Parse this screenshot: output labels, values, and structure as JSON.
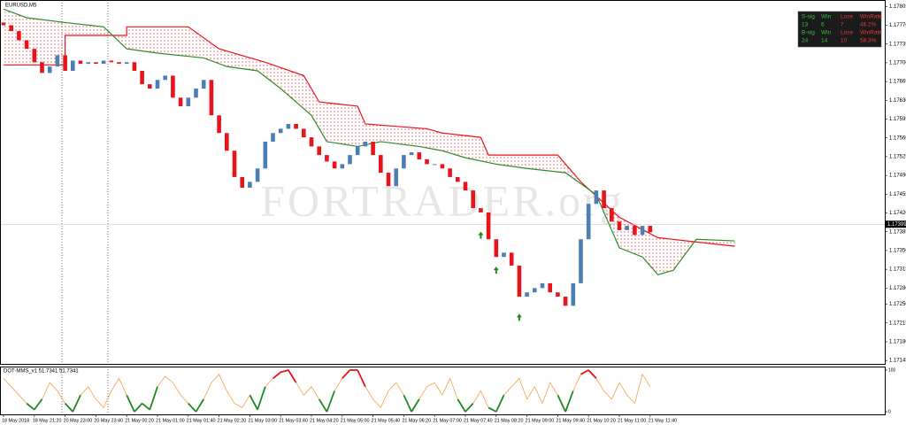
{
  "chart_data": [
    {
      "type": "candlestick",
      "title": "EURUSD,M5",
      "watermark": "FORTRADER.org",
      "categories": [
        "18 May 2018",
        null,
        null,
        null,
        "18 May 21:20",
        null,
        null,
        null,
        "20 May 23:00",
        null,
        null,
        null,
        "20 May 23:40",
        null,
        null,
        null,
        "21 May 00:20",
        null,
        null,
        null,
        "21 May 01:00",
        null,
        null,
        null,
        "21 May 01:40",
        null,
        null,
        null,
        "21 May 02:20",
        null,
        null,
        null,
        "21 May 03:00",
        null,
        null,
        null,
        "21 May 03:40",
        null,
        null,
        null,
        "21 May 04:20",
        null,
        null,
        null,
        "21 May 05:00",
        null,
        null,
        null,
        "21 May 05:40",
        null,
        null,
        null,
        "21 May 06:20",
        null,
        null,
        null,
        "21 May 07:00",
        null,
        null,
        null,
        "21 May 07:40",
        null,
        null,
        null,
        "21 May 08:20",
        null,
        null,
        null,
        "21 May 09:00",
        null,
        null,
        null,
        "21 May 09:40",
        null,
        null,
        null,
        "21 May 10:20",
        null,
        null,
        null,
        "21 May 11:00",
        null,
        null,
        null,
        "21 May 11:40"
      ],
      "open": [
        1.17775,
        1.1777,
        1.17759,
        1.17742,
        1.17726,
        1.17701,
        1.17681,
        1.17693,
        1.17714,
        1.17685,
        1.17704,
        1.17698,
        1.17701,
        1.17698,
        1.17704,
        1.17701,
        1.17698,
        1.17701,
        1.17685,
        1.1766,
        1.17652,
        1.17668,
        1.17676,
        1.17635,
        1.17619,
        1.17635,
        1.17652,
        1.17668,
        1.17602,
        1.17569,
        1.17536,
        1.17487,
        1.17467,
        1.17478,
        1.17503,
        1.17553,
        1.17569,
        1.17577,
        1.17586,
        1.17577,
        1.17561,
        1.17544,
        1.17528,
        1.17516,
        1.17503,
        1.17511,
        1.17528,
        1.17544,
        1.17553,
        1.17528,
        1.17495,
        1.1747,
        1.17503,
        1.17528,
        1.17533,
        1.1752,
        1.17511,
        1.17511,
        1.17503,
        1.17487,
        1.17478,
        1.17462,
        1.17429,
        1.17421,
        1.17371,
        1.17338,
        1.17346,
        1.17322,
        1.17264,
        1.17272,
        1.1728,
        1.17289,
        1.17272,
        1.17264,
        1.17247,
        1.17289,
        1.17371,
        1.17437,
        1.17462,
        1.17429,
        1.17404,
        1.17388,
        1.17396,
        1.17379,
        1.17396
      ],
      "close": [
        1.1777,
        1.17759,
        1.17742,
        1.17726,
        1.17701,
        1.17681,
        1.17693,
        1.17714,
        1.17685,
        1.17704,
        1.17698,
        1.17701,
        1.17698,
        1.17704,
        1.17701,
        1.17698,
        1.17701,
        1.17685,
        1.1766,
        1.17652,
        1.17668,
        1.17676,
        1.17635,
        1.17619,
        1.17635,
        1.17652,
        1.17668,
        1.17602,
        1.17569,
        1.17536,
        1.17487,
        1.17467,
        1.17478,
        1.17503,
        1.17553,
        1.17569,
        1.17577,
        1.17586,
        1.17577,
        1.17561,
        1.17544,
        1.17528,
        1.17516,
        1.17503,
        1.17511,
        1.17528,
        1.17544,
        1.17553,
        1.17528,
        1.17495,
        1.1747,
        1.17503,
        1.17528,
        1.17533,
        1.1752,
        1.17511,
        1.17511,
        1.17503,
        1.17487,
        1.17478,
        1.17462,
        1.17429,
        1.17421,
        1.17371,
        1.17338,
        1.17346,
        1.17322,
        1.17264,
        1.17272,
        1.1728,
        1.17289,
        1.17272,
        1.17264,
        1.17247,
        1.17289,
        1.17371,
        1.17437,
        1.17462,
        1.17429,
        1.17404,
        1.17388,
        1.17396,
        1.17379,
        1.17396,
        1.17384
      ],
      "up_color": "#4a7eb5",
      "down_color": "#e8141c",
      "overlays": [
        {
          "color": "#e8141c",
          "x": [
            0,
            8,
            8,
            16,
            16,
            24,
            28,
            34,
            39,
            41,
            46,
            47,
            55,
            57,
            62,
            63,
            72,
            75,
            80,
            85,
            95
          ],
          "values": [
            1.17696,
            1.17696,
            1.17751,
            1.17751,
            1.17767,
            1.17767,
            1.17726,
            1.17701,
            1.17676,
            1.17627,
            1.17619,
            1.17586,
            1.17577,
            1.17569,
            1.17561,
            1.17528,
            1.17528,
            1.17478,
            1.17412,
            1.17374,
            1.17358
          ]
        },
        {
          "color": "#2e8b2e",
          "x": [
            0,
            3,
            8,
            13,
            16,
            20,
            26,
            29,
            33,
            36,
            40,
            42,
            46,
            49,
            54,
            57,
            60,
            64,
            68,
            73,
            77,
            80,
            83,
            85,
            87,
            90,
            95
          ],
          "values": [
            1.178,
            1.17784,
            1.17775,
            1.17767,
            1.17726,
            1.17718,
            1.17709,
            1.17693,
            1.17685,
            1.17652,
            1.17602,
            1.17553,
            1.17544,
            1.17553,
            1.17544,
            1.17536,
            1.17523,
            1.17511,
            1.17503,
            1.17495,
            1.17454,
            1.17355,
            1.17338,
            1.17305,
            1.17313,
            1.17371,
            1.17368
          ]
        }
      ],
      "buy_signals": {
        "color": "#1e8a1e",
        "x": [
          62,
          64,
          67
        ],
        "values": [
          1.17395,
          1.1733,
          1.17242
        ]
      },
      "last_price": {
        "value": 1.17399,
        "label": "1.17399"
      },
      "ylim": [
        1.17137,
        1.17817
      ],
      "yticks": [
        1.17805,
        {
          "value": 1.1777,
          "label": "1.17770"
        },
        1.17735,
        {
          "value": 1.177,
          "label": "1.17700"
        },
        1.17665,
        {
          "value": 1.1763,
          "label": "1.17630"
        },
        1.17595,
        {
          "value": 1.1756,
          "label": "1.17560"
        },
        1.17525,
        {
          "value": 1.1749,
          "label": "1.17490"
        },
        1.17455,
        {
          "value": 1.1742,
          "label": "1.17420"
        },
        1.17385,
        {
          "value": 1.1735,
          "label": "1.17350"
        },
        1.17315,
        {
          "value": 1.1728,
          "label": "1.17280"
        },
        {
          "value": 1.1725,
          "label": "1.17250"
        },
        1.17215,
        {
          "value": 1.1718,
          "label": "1.17180"
        },
        1.17145
      ]
    },
    {
      "type": "line",
      "title": "DOT-MMS_v1 51.7341 51.7341",
      "color": "#f5a04a",
      "high_color": "#e8141c",
      "low_color": "#1e8a1e",
      "high_level": 95,
      "low_level": 5,
      "values": [
        80,
        60,
        40,
        20,
        5,
        30,
        70,
        50,
        20,
        0,
        40,
        60,
        30,
        10,
        50,
        80,
        40,
        0,
        20,
        5,
        60,
        85,
        70,
        40,
        20,
        0,
        30,
        70,
        90,
        50,
        20,
        10,
        40,
        5,
        60,
        80,
        95,
        100,
        70,
        40,
        60,
        30,
        0,
        50,
        80,
        100,
        100,
        60,
        30,
        10,
        50,
        70,
        40,
        0,
        30,
        60,
        70,
        40,
        80,
        30,
        0,
        20,
        50,
        10,
        0,
        40,
        60,
        80,
        30,
        60,
        20,
        70,
        40,
        0,
        50,
        90,
        100,
        80,
        50,
        30,
        70,
        40,
        20,
        90,
        60
      ],
      "ylim": [
        0,
        100
      ],
      "yticks": [
        0,
        100
      ]
    }
  ],
  "stats": {
    "rows": [
      [
        "S-sig",
        "Win",
        "Lose",
        "WinRate"
      ],
      [
        "13",
        "6",
        "7",
        "46.2%"
      ],
      [
        "B-sig",
        "Win",
        "Lose",
        "WinRate"
      ],
      [
        "24",
        "14",
        "10",
        "58.3%"
      ]
    ]
  }
}
